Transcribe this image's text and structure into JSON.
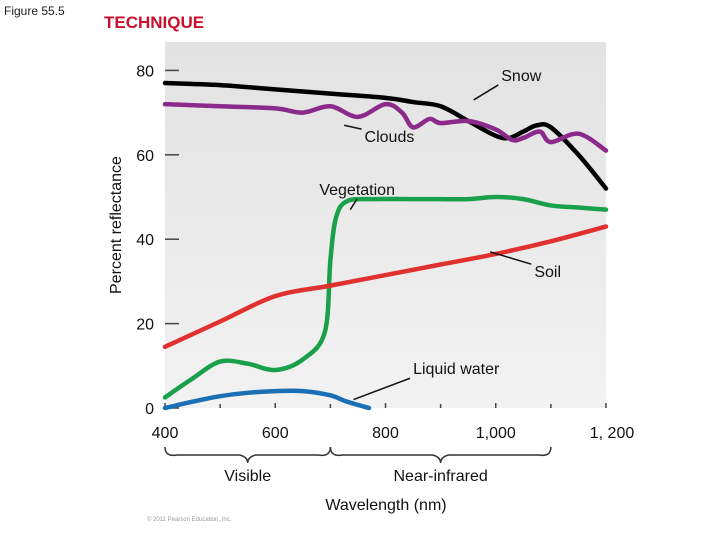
{
  "figure_label": "Figure 55.5",
  "technique_label": "TECHNIQUE",
  "copyright": "© 2011 Pearson Education, Inc.",
  "chart_data": {
    "type": "line",
    "xlabel": "Wavelength (nm)",
    "ylabel": "Percent reflectance",
    "xlim": [
      400,
      1200
    ],
    "ylim": [
      0,
      80
    ],
    "x_ticks": [
      "400",
      "600",
      "800",
      "1,000",
      "1, 200"
    ],
    "y_ticks": [
      "0",
      "20",
      "40",
      "60",
      "80"
    ],
    "grid": false,
    "range_labels": [
      {
        "label": "Visible",
        "from": 400,
        "to": 700
      },
      {
        "label": "Near-infrared",
        "from": 700,
        "to": 1100
      }
    ],
    "series": [
      {
        "name": "Snow",
        "color": "#000000",
        "x": [
          400,
          500,
          600,
          700,
          800,
          850,
          900,
          950,
          1000,
          1025,
          1050,
          1075,
          1100,
          1150,
          1200
        ],
        "y": [
          77,
          76.5,
          75.5,
          74.5,
          73.5,
          72.5,
          71.5,
          68,
          64.5,
          64,
          65.5,
          67,
          66.5,
          60,
          52
        ]
      },
      {
        "name": "Clouds",
        "color": "#8b2a8b",
        "x": [
          400,
          500,
          600,
          650,
          700,
          750,
          800,
          830,
          850,
          880,
          900,
          950,
          1000,
          1030,
          1050,
          1080,
          1100,
          1150,
          1200
        ],
        "y": [
          72,
          71.5,
          71,
          70,
          71.5,
          69,
          72,
          70,
          66.5,
          68.5,
          67.5,
          68,
          66,
          63.5,
          64,
          65.5,
          63,
          65,
          61
        ]
      },
      {
        "name": "Vegetation",
        "color": "#1aa04a",
        "x": [
          400,
          450,
          500,
          550,
          600,
          650,
          690,
          700,
          710,
          730,
          780,
          850,
          900,
          950,
          1000,
          1050,
          1100,
          1150,
          1200
        ],
        "y": [
          2.5,
          7,
          11,
          10.5,
          9,
          11.5,
          18,
          35,
          45,
          49,
          49.5,
          49.5,
          49.5,
          49.5,
          50,
          49.5,
          48,
          47.5,
          47
        ]
      },
      {
        "name": "Soil",
        "color": "#e03030",
        "x": [
          400,
          500,
          600,
          700,
          800,
          900,
          1000,
          1100,
          1200
        ],
        "y": [
          14.5,
          20.5,
          26.5,
          29,
          31.5,
          34,
          36.5,
          39.5,
          43
        ]
      },
      {
        "name": "Liquid water",
        "color": "#1a6fb5",
        "x": [
          400,
          450,
          500,
          550,
          600,
          650,
          700,
          730,
          770
        ],
        "y": [
          0,
          1.5,
          2.8,
          3.6,
          4,
          4,
          3,
          1.5,
          0
        ]
      }
    ],
    "annotations": [
      {
        "text": "Snow",
        "x": 1010,
        "y": 77.5,
        "points_to": [
          960,
          73
        ]
      },
      {
        "text": "Clouds",
        "x": 762,
        "y": 63,
        "points_to": [
          725,
          67
        ]
      },
      {
        "text": "Vegetation",
        "x": 680,
        "y": 50.5,
        "points_to": [
          736,
          47
        ]
      },
      {
        "text": "Soil",
        "x": 1070,
        "y": 31,
        "points_to": [
          990,
          37
        ]
      },
      {
        "text": "Liquid water",
        "x": 850,
        "y": 8,
        "points_to": [
          742,
          2
        ]
      }
    ]
  }
}
